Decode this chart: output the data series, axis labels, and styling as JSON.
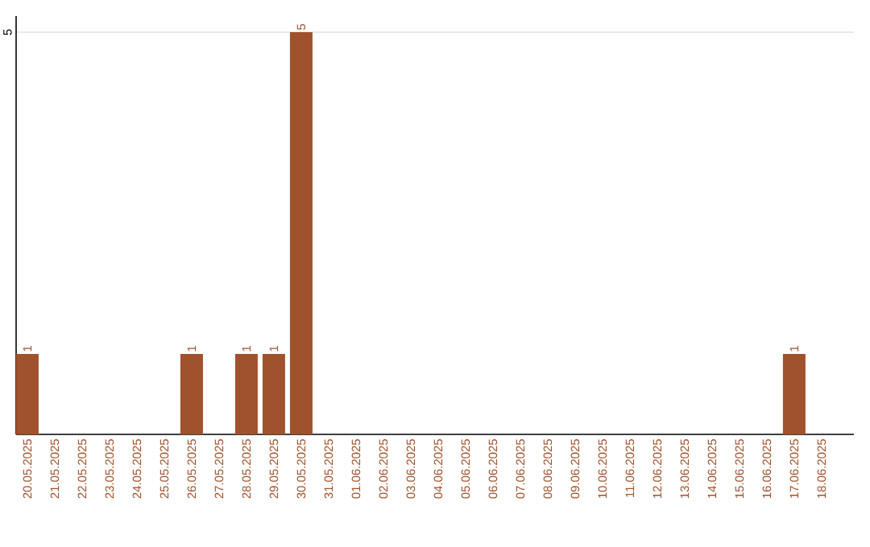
{
  "chart_data": {
    "type": "bar",
    "categories": [
      "20.05.2025",
      "21.05.2025",
      "22.05.2025",
      "23.05.2025",
      "24.05.2025",
      "25.05.2025",
      "26.05.2025",
      "27.05.2025",
      "28.05.2025",
      "29.05.2025",
      "30.05.2025",
      "31.05.2025",
      "01.06.2025",
      "02.06.2025",
      "03.06.2025",
      "04.06.2025",
      "05.06.2025",
      "06.06.2025",
      "07.06.2025",
      "08.06.2025",
      "09.06.2025",
      "10.06.2025",
      "11.06.2025",
      "12.06.2025",
      "13.06.2025",
      "14.06.2025",
      "15.06.2025",
      "16.06.2025",
      "17.06.2025",
      "18.06.2025"
    ],
    "values": [
      1,
      0,
      0,
      0,
      0,
      0,
      1,
      0,
      1,
      1,
      5,
      0,
      0,
      0,
      0,
      0,
      0,
      0,
      0,
      0,
      0,
      0,
      0,
      0,
      0,
      0,
      0,
      0,
      1,
      0
    ],
    "value_labels": [
      "1",
      null,
      null,
      null,
      null,
      null,
      "1",
      null,
      "1",
      "1",
      "5",
      null,
      null,
      null,
      null,
      null,
      null,
      null,
      null,
      null,
      null,
      null,
      null,
      null,
      null,
      null,
      null,
      null,
      "1",
      null
    ],
    "color": "#a0522d",
    "ylim": [
      0,
      5.2
    ],
    "yticks": [
      5
    ],
    "grid": "y"
  }
}
